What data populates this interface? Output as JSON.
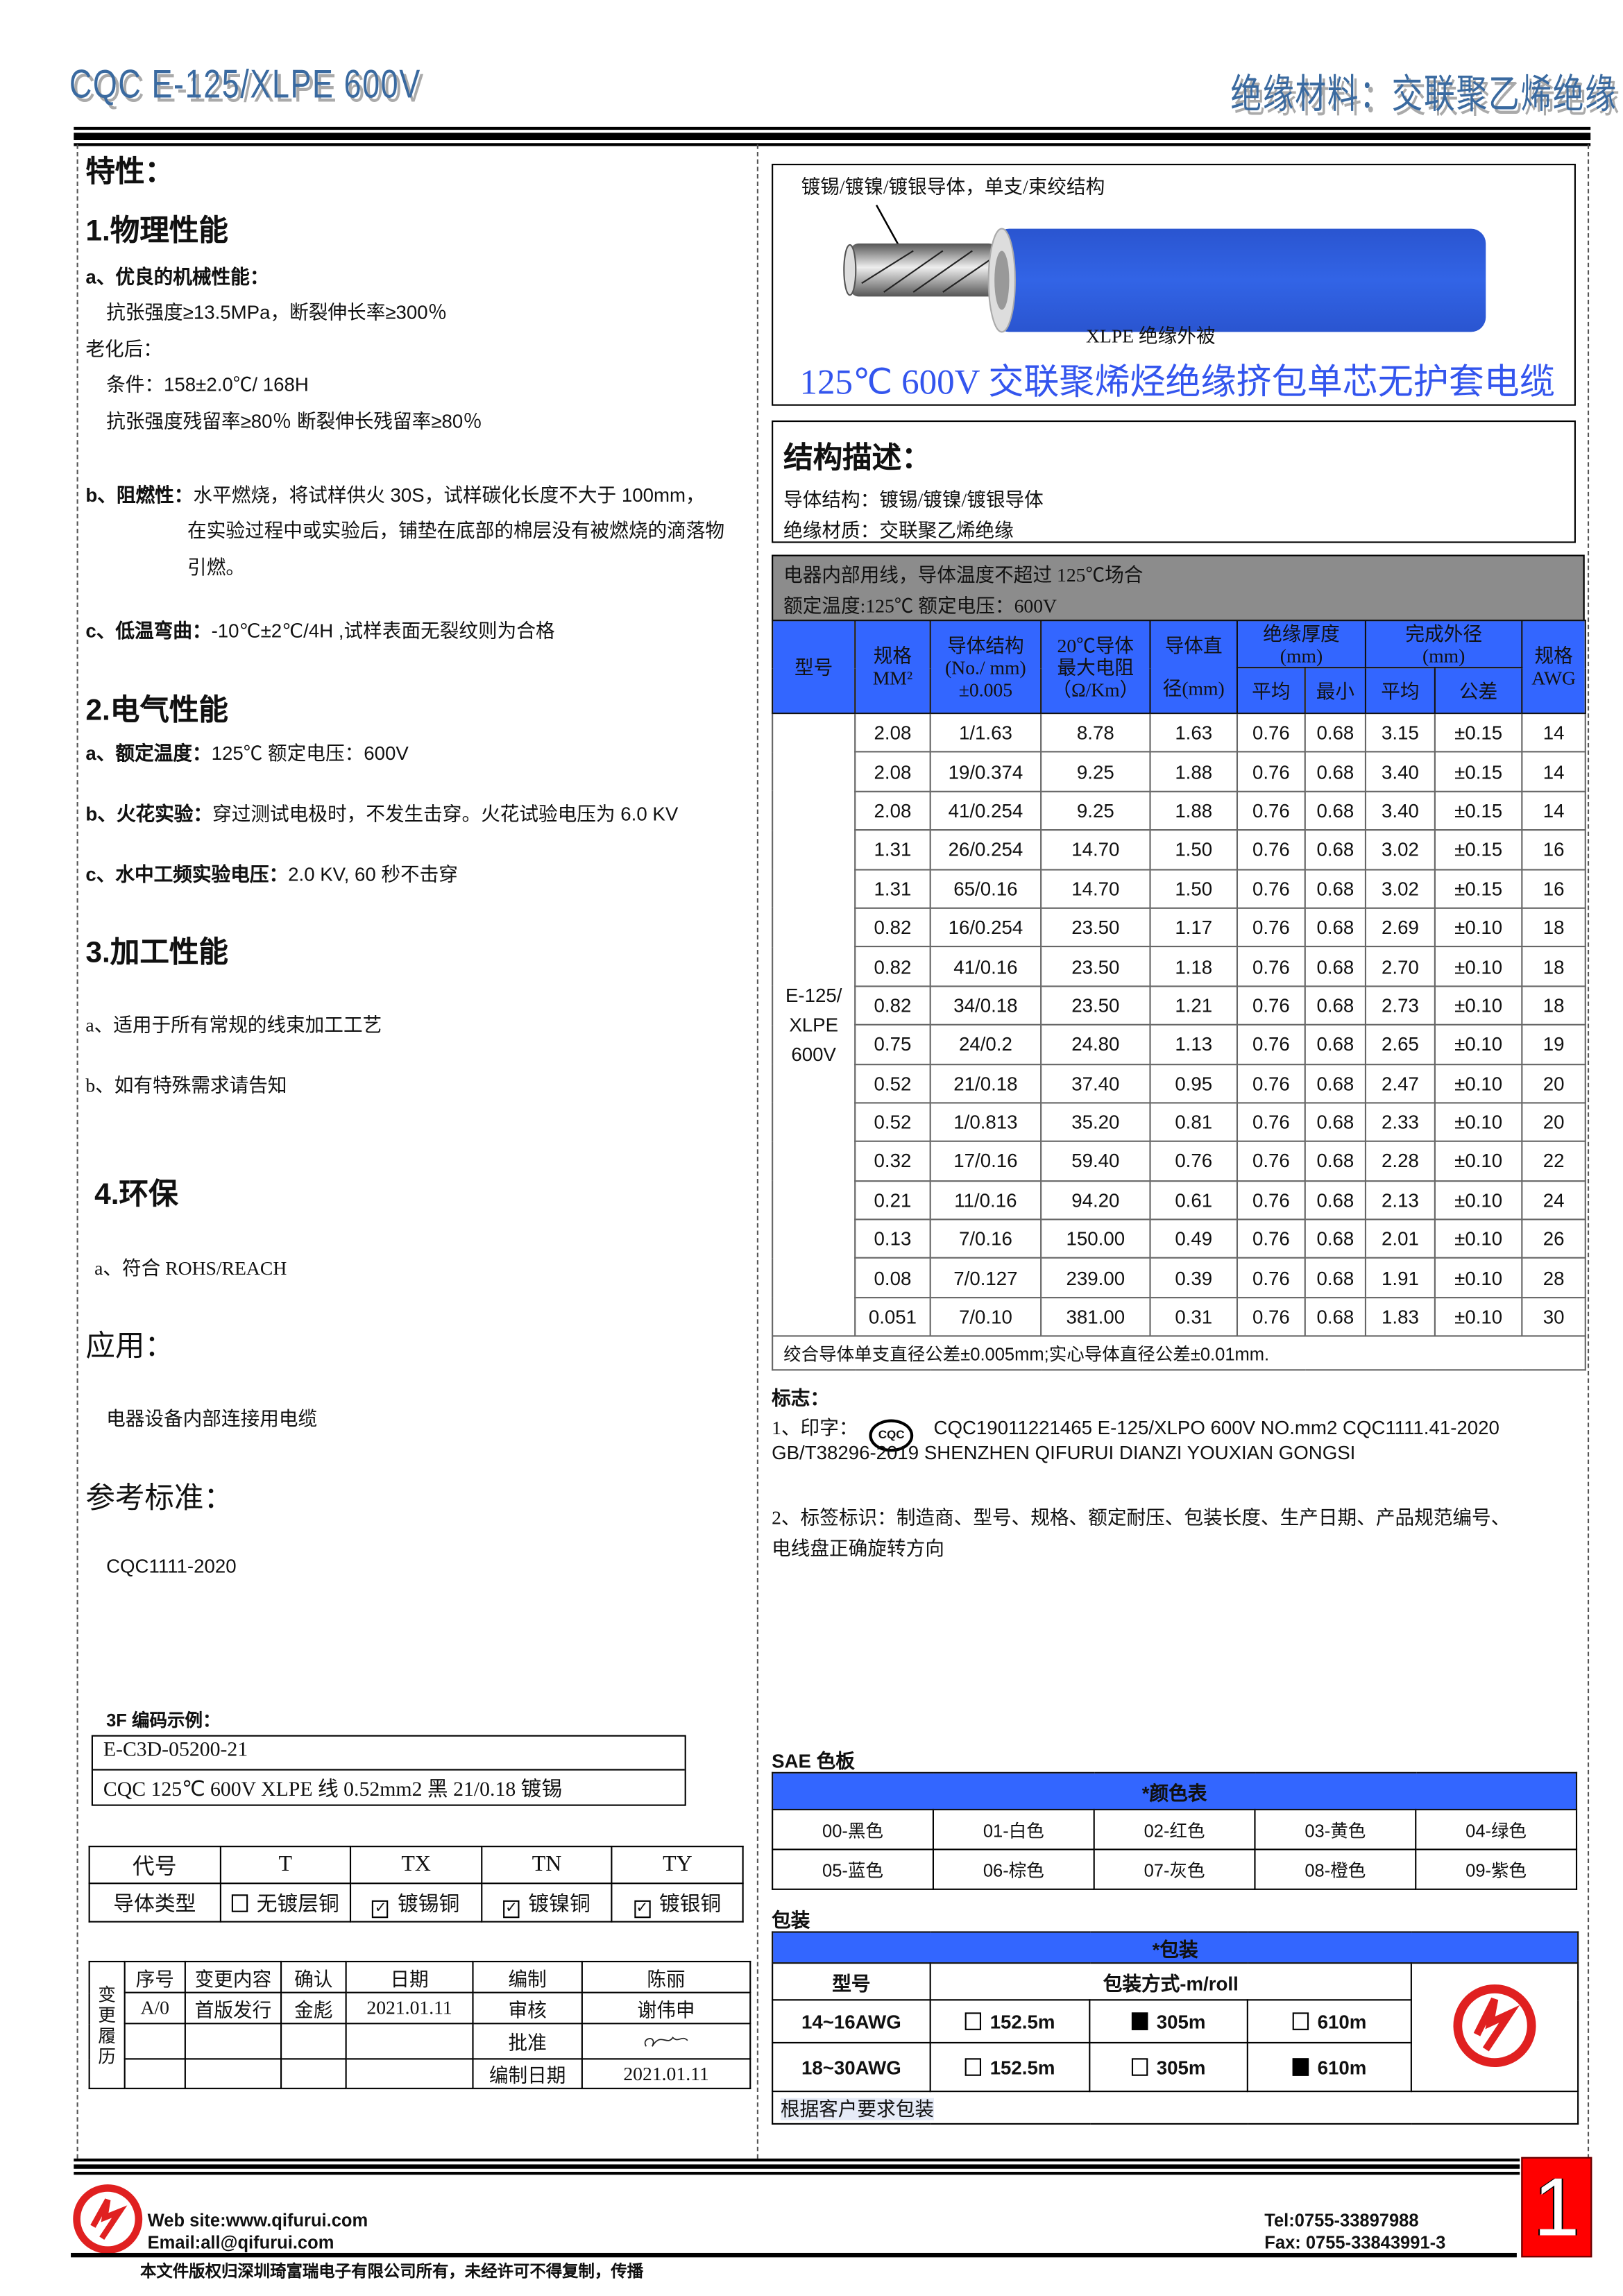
{
  "header": {
    "title": "CQC E-125/XLPE 600V",
    "subtitle": "绝缘材料：交联聚乙烯绝缘"
  },
  "left": {
    "features_title": "特性：",
    "physical": {
      "title": "1.物理性能",
      "a_title": "a、优良的机械性能：",
      "a_line1": "抗张强度≥13.5MPa，断裂伸长率≥300％",
      "aging": "老化后：",
      "condition": "条件：158±2.0℃/ 168H",
      "retention": "抗张强度残留率≥80％  断裂伸长残留率≥80％",
      "b_title": "b、阻燃性：",
      "b_line1": "水平燃烧，将试样供火 30S，试样碳化长度不大于 100mm，",
      "b_line2": "在实验过程中或实验后，铺垫在底部的棉层没有被燃烧的滴落物",
      "b_line3": "引燃。",
      "c_title": "c、低温弯曲：",
      "c_text": "-10℃±2℃/4H ,试样表面无裂纹则为合格"
    },
    "electrical": {
      "title": "2.电气性能",
      "a_title": "a、额定温度：",
      "a_text": "125℃    额定电压：600V",
      "b_title": "b、火花实验：",
      "b_text": "穿过测试电极时，不发生击穿。火花试验电压为 6.0 KV",
      "c_title": "c、水中工频实验电压：",
      "c_text": "2.0 KV, 60 秒不击穿"
    },
    "processing": {
      "title": "3.加工性能",
      "a": "a、适用于所有常规的线束加工工艺",
      "b": "b、如有特殊需求请告知"
    },
    "env": {
      "title": "4.环保",
      "a": "a、符合 ROHS/REACH"
    },
    "application": {
      "title": "应用：",
      "text": "电器设备内部连接用电缆"
    },
    "standard": {
      "title": "参考标准：",
      "text": "CQC1111-2020"
    },
    "code_example": {
      "title": "3F 编码示例：",
      "code": "E-C3D-05200-21",
      "desc": "CQC 125℃  600V XLPE 线  0.52mm2  黑  21/0.18 镀锡"
    },
    "conductor_table": {
      "headers": [
        "代号",
        "T",
        "TX",
        "TN",
        "TY"
      ],
      "row_label": "导体类型",
      "options": [
        {
          "label": "无镀层铜",
          "checked": false
        },
        {
          "label": "镀锡铜",
          "checked": true
        },
        {
          "label": "镀镍铜",
          "checked": true
        },
        {
          "label": "镀银铜",
          "checked": true
        }
      ]
    },
    "change_history": {
      "side_label": "变更履历",
      "headers": [
        "序号",
        "变更内容",
        "确认",
        "日期"
      ],
      "row": [
        "A/0",
        "首版发行",
        "金彪",
        "2021.01.11"
      ],
      "sign": [
        [
          "编制",
          "陈丽"
        ],
        [
          "审核",
          "谢伟申"
        ],
        [
          "批准",
          ""
        ],
        [
          "编制日期",
          "2021.01.11"
        ]
      ],
      "signature": "signature"
    }
  },
  "right": {
    "diagram": {
      "conductor_label": "镀锡/镀镍/镀银导体，单支/束绞结构",
      "insulation_label": "XLPE  绝缘外被",
      "caption": "125℃  600V 交联聚烯烃绝缘挤包单芯无护套电缆",
      "insulation_color": "#3060e0"
    },
    "structure": {
      "title": "结构描述：",
      "conductor": "导体结构：镀锡/镀镍/镀银导体",
      "insulation": "绝缘材质：交联聚乙烯绝缘"
    },
    "usage": {
      "line1": "电器内部用线，导体温度不超过 125℃场合",
      "line2": "额定温度:125℃  额定电压：600V"
    },
    "spec_table": {
      "headers": {
        "model": "型号",
        "size": "规格",
        "size_unit": "MM²",
        "structure": "导体结构",
        "structure_unit": "(No./ mm)",
        "structure_tol": "±0.005",
        "resistance": "20℃导体",
        "resistance2": "最大电阻",
        "resistance_unit": "（Ω/Km）",
        "diameter": "导体直",
        "diameter2": "径(mm)",
        "insulation": "绝缘厚度",
        "insulation_unit": "(mm)",
        "od": "完成外径",
        "od_unit": "(mm)",
        "avg": "平均",
        "min": "最小",
        "avg2": "平均",
        "tol": "公差",
        "awg": "规格",
        "awg2": "AWG"
      },
      "model": "E-125/ XLPE 600V",
      "rows": [
        [
          "2.08",
          "1/1.63",
          "8.78",
          "1.63",
          "0.76",
          "0.68",
          "3.15",
          "±0.15",
          "14"
        ],
        [
          "2.08",
          "19/0.374",
          "9.25",
          "1.88",
          "0.76",
          "0.68",
          "3.40",
          "±0.15",
          "14"
        ],
        [
          "2.08",
          "41/0.254",
          "9.25",
          "1.88",
          "0.76",
          "0.68",
          "3.40",
          "±0.15",
          "14"
        ],
        [
          "1.31",
          "26/0.254",
          "14.70",
          "1.50",
          "0.76",
          "0.68",
          "3.02",
          "±0.15",
          "16"
        ],
        [
          "1.31",
          "65/0.16",
          "14.70",
          "1.50",
          "0.76",
          "0.68",
          "3.02",
          "±0.15",
          "16"
        ],
        [
          "0.82",
          "16/0.254",
          "23.50",
          "1.17",
          "0.76",
          "0.68",
          "2.69",
          "±0.10",
          "18"
        ],
        [
          "0.82",
          "41/0.16",
          "23.50",
          "1.18",
          "0.76",
          "0.68",
          "2.70",
          "±0.10",
          "18"
        ],
        [
          "0.82",
          "34/0.18",
          "23.50",
          "1.21",
          "0.76",
          "0.68",
          "2.73",
          "±0.10",
          "18"
        ],
        [
          "0.75",
          "24/0.2",
          "24.80",
          "1.13",
          "0.76",
          "0.68",
          "2.65",
          "±0.10",
          "19"
        ],
        [
          "0.52",
          "21/0.18",
          "37.40",
          "0.95",
          "0.76",
          "0.68",
          "2.47",
          "±0.10",
          "20"
        ],
        [
          "0.52",
          "1/0.813",
          "35.20",
          "0.81",
          "0.76",
          "0.68",
          "2.33",
          "±0.10",
          "20"
        ],
        [
          "0.32",
          "17/0.16",
          "59.40",
          "0.76",
          "0.76",
          "0.68",
          "2.28",
          "±0.10",
          "22"
        ],
        [
          "0.21",
          "11/0.16",
          "94.20",
          "0.61",
          "0.76",
          "0.68",
          "2.13",
          "±0.10",
          "24"
        ],
        [
          "0.13",
          "7/0.16",
          "150.00",
          "0.49",
          "0.76",
          "0.68",
          "2.01",
          "±0.10",
          "26"
        ],
        [
          "0.08",
          "7/0.127",
          "239.00",
          "0.39",
          "0.76",
          "0.68",
          "1.91",
          "±0.10",
          "28"
        ],
        [
          "0.051",
          "7/0.10",
          "381.00",
          "0.31",
          "0.76",
          "0.68",
          "1.83",
          "±0.10",
          "30"
        ]
      ],
      "note": "绞合导体单支直径公差±0.005mm;实心导体直径公差±0.01mm."
    },
    "marking": {
      "title": "标志：",
      "line1_prefix": "1、印字：",
      "cqc_logo": "CQC",
      "line1": "CQC19011221465  E-125/XLPO  600V  NO.mm2  CQC1111.41-2020",
      "line2": "GB/T38296-2019 SHENZHEN QIFURUI DIANZI YOUXIAN GONGSI",
      "line3": "2、标签标识：制造商、型号、规格、额定耐压、包装长度、生产日期、产品规范编号、",
      "line4": "电线盘正确旋转方向"
    },
    "color_board": {
      "title": "SAE 色板",
      "header": "*颜色表",
      "colors": [
        "00-黑色",
        "01-白色",
        "02-红色",
        "03-黄色",
        "04-绿色",
        "05-蓝色",
        "06-棕色",
        "07-灰色",
        "08-橙色",
        "09-紫色"
      ]
    },
    "packaging": {
      "title": "包装",
      "header": "*包装",
      "col_model": "型号",
      "col_method": "包装方式-m/roll",
      "rows": [
        {
          "model": "14~16AWG",
          "options": [
            {
              "label": "152.5m",
              "checked": false
            },
            {
              "label": "305m",
              "checked": true
            },
            {
              "label": "610m",
              "checked": false
            }
          ]
        },
        {
          "model": "18~30AWG",
          "options": [
            {
              "label": "152.5m",
              "checked": false
            },
            {
              "label": "305m",
              "checked": false
            },
            {
              "label": "610m",
              "checked": true
            }
          ]
        }
      ],
      "note": "根据客户要求包装"
    }
  },
  "footer": {
    "website": "Web site:www.qifurui.com",
    "email": "Email:all@qifurui.com",
    "tel": "Tel:0755-33897988",
    "fax": "Fax: 0755-33843991-3",
    "copyright": "本文件版权归深圳琦富瑞电子有限公司所有，未经许可不得复制，传播",
    "page_number": "1"
  },
  "colors": {
    "accent_blue": "#3366ff",
    "header_blue": "#3a6aa0",
    "gray_band": "#8c8c8c",
    "brand_red": "#e02020"
  }
}
